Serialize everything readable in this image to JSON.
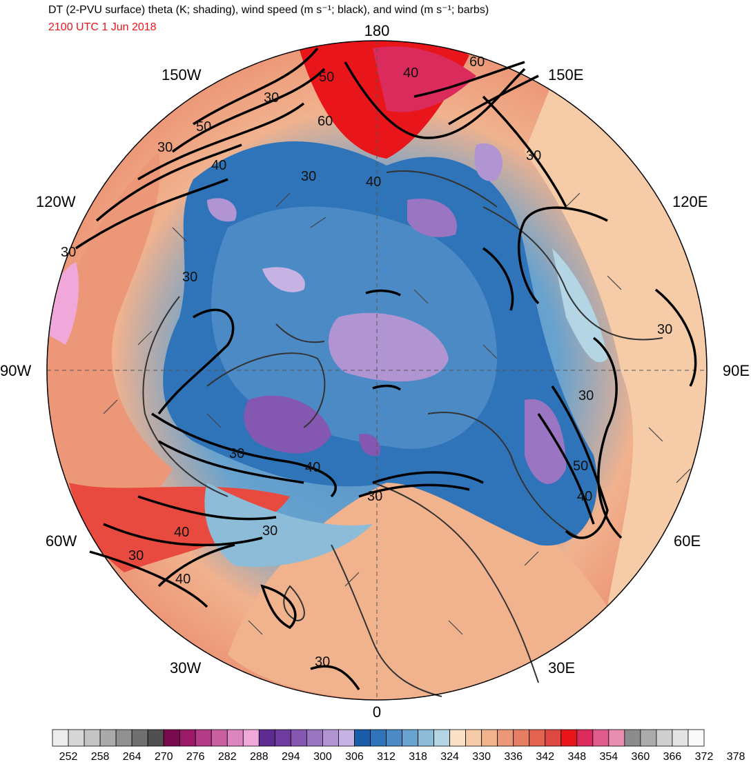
{
  "header": {
    "title": "DT (2-PVU surface) theta (K; shading), wind speed (m s⁻¹; black), and wind (m s⁻¹; barbs)",
    "time": "2100 UTC 1 Jun 2018"
  },
  "map": {
    "projection": "north-polar-stereographic",
    "longitude_labels": {
      "top": "180",
      "bottom": "0",
      "left": "90W",
      "right": "90E",
      "upper_left": "150W",
      "upper_right": "150E",
      "mid_upper_left": "120W",
      "mid_upper_right": "120E",
      "mid_lower_left": "60W",
      "mid_lower_right": "60E",
      "lower_left": "30W",
      "lower_right": "30E"
    },
    "contour_labels": [
      "60",
      "50",
      "40",
      "60",
      "30",
      "50",
      "30",
      "40",
      "30",
      "40",
      "30",
      "30",
      "30",
      "30",
      "30",
      "50",
      "40",
      "30",
      "40",
      "30",
      "30",
      "40",
      "30",
      "40",
      "30"
    ]
  },
  "colorbar": {
    "colors": [
      "#ececec",
      "#d7d7d7",
      "#c3c3c3",
      "#aaaaaa",
      "#909090",
      "#707070",
      "#505050",
      "#7a0b4e",
      "#9b1a68",
      "#b23c85",
      "#c85fa0",
      "#dd85bf",
      "#f0a8da",
      "#5d2b8f",
      "#6f3b9f",
      "#8458b0",
      "#9a75c1",
      "#b195d3",
      "#c7b3e3",
      "#1a5da8",
      "#2f73b8",
      "#4b8ac5",
      "#68a2ce",
      "#8cbcd8",
      "#b4d5e4",
      "#fbe2c6",
      "#f6cba8",
      "#f1b28e",
      "#ec9878",
      "#e67e64",
      "#e16350",
      "#dd4942",
      "#e8161b",
      "#db2b5c",
      "#e05c8c",
      "#e98eb1",
      "#8c8c8c",
      "#ababab",
      "#cfcfcf",
      "#e4e4e4",
      "#fafafa"
    ],
    "tick_labels": [
      "252",
      "258",
      "264",
      "270",
      "276",
      "282",
      "288",
      "294",
      "300",
      "306",
      "312",
      "318",
      "324",
      "330",
      "336",
      "342",
      "348",
      "354",
      "360",
      "366",
      "372",
      "378"
    ]
  }
}
